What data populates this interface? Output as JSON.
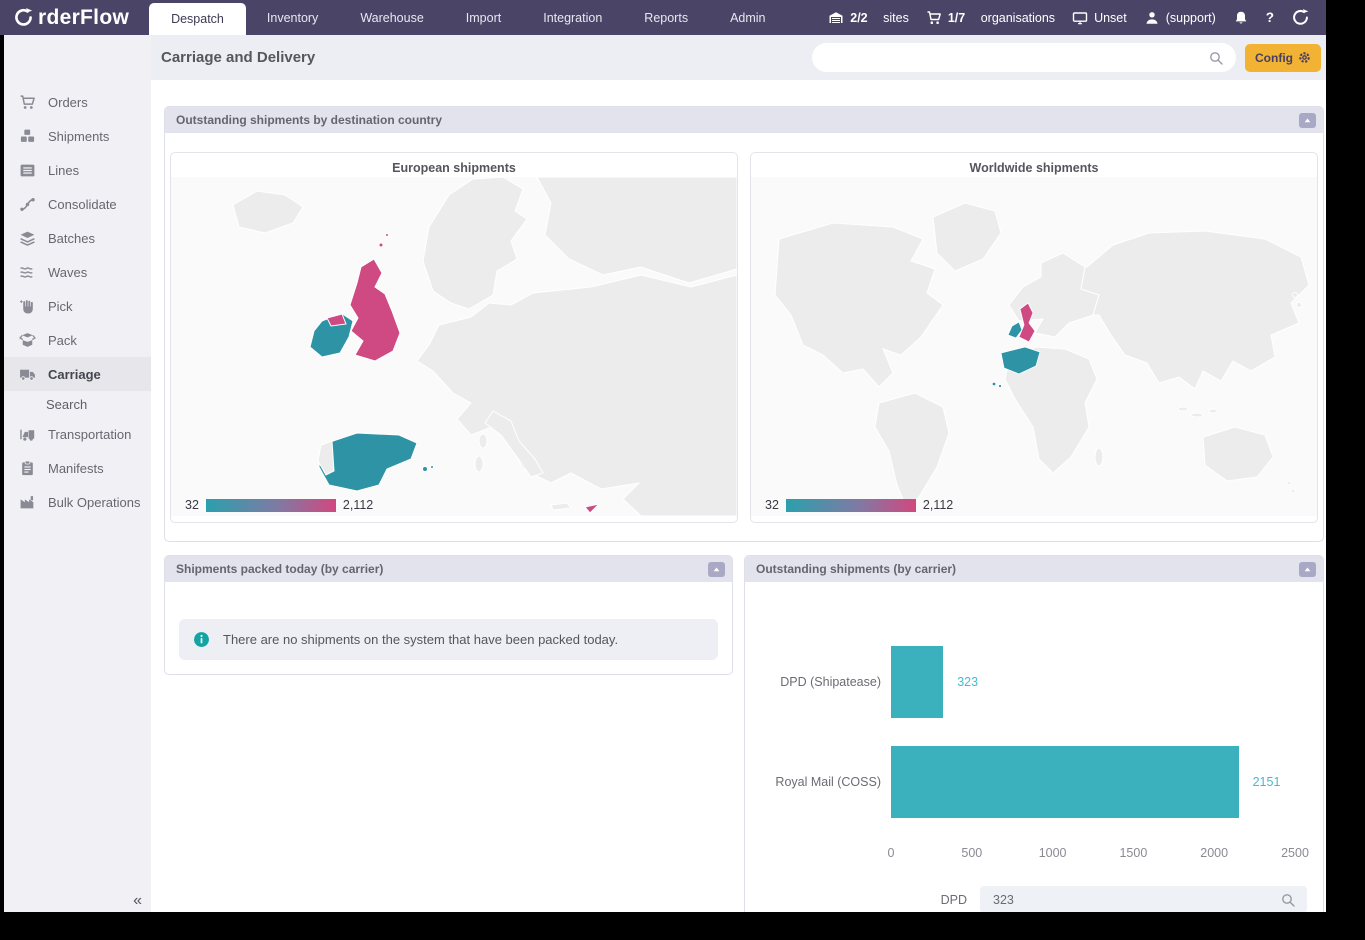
{
  "colors": {
    "nav_bg": "#4a4466",
    "accent_yellow": "#f2b233",
    "panel_header_bg": "#e3e3ed",
    "teal": "#2d93a5",
    "pink": "#cf4a82",
    "bar_teal": "#3ab1bd",
    "value_teal": "#4ab8cc",
    "info_teal": "#12a3a3",
    "legend_gradient_start": "#2aa0ad",
    "legend_gradient_end": "#d1487f"
  },
  "nav": {
    "brand": "OrderFlow",
    "brand_rest": "rderFlow",
    "tabs": [
      {
        "label": "Despatch",
        "active": true
      },
      {
        "label": "Inventory",
        "active": false
      },
      {
        "label": "Warehouse",
        "active": false
      },
      {
        "label": "Import",
        "active": false
      },
      {
        "label": "Integration",
        "active": false
      },
      {
        "label": "Reports",
        "active": false
      },
      {
        "label": "Admin",
        "active": false
      }
    ],
    "status": [
      {
        "icon": "warehouse-icon",
        "bold": "2/2",
        "label": "sites"
      },
      {
        "icon": "cart-icon",
        "bold": "1/7",
        "label": "organisations"
      },
      {
        "icon": "monitor-icon",
        "bold": "",
        "label": "Unset"
      },
      {
        "icon": "user-icon",
        "bold": "",
        "label": "(support)"
      }
    ],
    "help_label": "?"
  },
  "sidebar": {
    "items": [
      {
        "label": "Orders",
        "icon": "cart-icon"
      },
      {
        "label": "Shipments",
        "icon": "boxes-icon"
      },
      {
        "label": "Lines",
        "icon": "list-icon"
      },
      {
        "label": "Consolidate",
        "icon": "fork-icon"
      },
      {
        "label": "Batches",
        "icon": "layers-icon"
      },
      {
        "label": "Waves",
        "icon": "waves-icon"
      },
      {
        "label": "Pick",
        "icon": "hand-icon"
      },
      {
        "label": "Pack",
        "icon": "box-open-icon"
      },
      {
        "label": "Carriage",
        "icon": "truck-icon",
        "active": true
      },
      {
        "label": "Search",
        "sub": true
      },
      {
        "label": "Transportation",
        "icon": "transport-icon"
      },
      {
        "label": "Manifests",
        "icon": "clipboard-icon"
      },
      {
        "label": "Bulk Operations",
        "icon": "factory-icon"
      }
    ],
    "collapse_label": "«"
  },
  "header": {
    "title": "Carriage and Delivery",
    "search_value": "",
    "config_label": "Config"
  },
  "panels": {
    "destinations": {
      "title": "Outstanding shipments by destination country"
    },
    "packed_today": {
      "title": "Shipments packed today (by carrier)",
      "empty_message": "There are no shipments on the system that have been packed today."
    },
    "outstanding": {
      "title": "Outstanding shipments (by carrier)"
    }
  },
  "chart_data": [
    {
      "type": "choropleth",
      "title": "European shipments",
      "legend_min_label": "32",
      "legend_max_label": "2,112",
      "scale_min": 32,
      "scale_max": 2112,
      "highlighted_regions": [
        {
          "name": "United Kingdom",
          "color": "#cf4a82"
        },
        {
          "name": "Ireland",
          "color": "#2d93a5"
        },
        {
          "name": "Spain",
          "color": "#2d93a5"
        }
      ]
    },
    {
      "type": "choropleth",
      "title": "Worldwide shipments",
      "legend_min_label": "32",
      "legend_max_label": "2,112",
      "scale_min": 32,
      "scale_max": 2112,
      "highlighted_regions": [
        {
          "name": "United Kingdom",
          "color": "#cf4a82"
        },
        {
          "name": "Ireland",
          "color": "#2d93a5"
        },
        {
          "name": "Spain",
          "color": "#2d93a5"
        }
      ]
    },
    {
      "type": "bar",
      "orientation": "horizontal",
      "categories": [
        "DPD (Shipatease)",
        "Royal Mail (COSS)"
      ],
      "values": [
        323,
        2151
      ],
      "value_labels": [
        "323",
        "2151"
      ],
      "xlim": [
        0,
        2500
      ],
      "xticks": [
        0,
        500,
        1000,
        1500,
        2000,
        2500
      ],
      "grid": false,
      "bar_color": "#3ab1bd"
    }
  ],
  "chart_footer": {
    "label": "DPD",
    "value": "323"
  }
}
